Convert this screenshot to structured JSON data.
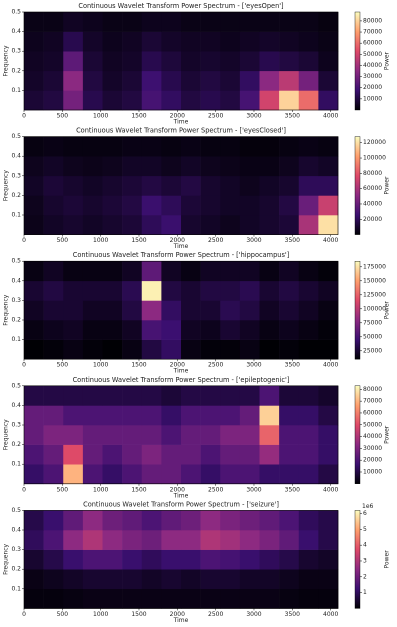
{
  "chart_data": [
    {
      "type": "heatmap",
      "title": "Continuous Wavelet Transform Power Spectrum - ['eyesOpen']",
      "x_label": "Time",
      "y_label": "Frequency",
      "colorbar_label": "Power",
      "xbins": [
        0,
        256,
        512,
        768,
        1024,
        1280,
        1536,
        1792,
        2048,
        2304,
        2560,
        2816,
        3072,
        3328,
        3584,
        3840,
        4096
      ],
      "ybins": [
        0,
        0.1,
        0.2,
        0.3,
        0.4,
        0.5
      ],
      "z": [
        [
          8000,
          10000,
          30000,
          12000,
          8000,
          10000,
          20000,
          15000,
          10000,
          12000,
          10000,
          20000,
          50000,
          80000,
          60000,
          15000
        ],
        [
          6000,
          8000,
          35000,
          10000,
          6000,
          8000,
          18000,
          12000,
          8000,
          10000,
          8000,
          15000,
          35000,
          45000,
          30000,
          8000
        ],
        [
          5000,
          6000,
          25000,
          8000,
          5000,
          6000,
          12000,
          9000,
          6000,
          7000,
          6000,
          8000,
          12000,
          10000,
          8000,
          4000
        ],
        [
          4000,
          5000,
          12000,
          6000,
          4000,
          5000,
          8000,
          6000,
          5000,
          5000,
          4000,
          5000,
          6000,
          5000,
          4000,
          3000
        ],
        [
          3000,
          3000,
          5000,
          4000,
          3000,
          3000,
          4000,
          4000,
          3000,
          3000,
          3000,
          3000,
          3000,
          3000,
          3000,
          2000
        ]
      ],
      "xlim": [
        0,
        4096
      ],
      "xticks": [
        0,
        500,
        1000,
        1500,
        2000,
        2500,
        3000,
        3500,
        4000
      ],
      "ylim": [
        0,
        0.5
      ],
      "yticks": [
        0.1,
        0.2,
        0.3,
        0.4,
        0.5
      ],
      "zlim": [
        0,
        88000
      ],
      "zticks": [
        10000,
        20000,
        30000,
        40000,
        50000,
        60000,
        70000,
        80000
      ],
      "colormap": [
        "#000004",
        "#3b0f70",
        "#8c2981",
        "#de4968",
        "#fe9f6d",
        "#fcfdbf"
      ]
    },
    {
      "type": "heatmap",
      "title": "Continuous Wavelet Transform Power Spectrum - ['eyesClosed']",
      "x_label": "Time",
      "y_label": "Frequency",
      "colorbar_label": "Power",
      "xbins": [
        0,
        256,
        512,
        768,
        1024,
        1280,
        1536,
        1792,
        2048,
        2304,
        2560,
        2816,
        3072,
        3328,
        3584,
        3840,
        4096
      ],
      "ybins": [
        0,
        0.1,
        0.2,
        0.3,
        0.4,
        0.5
      ],
      "z": [
        [
          5000,
          8000,
          10000,
          8000,
          10000,
          12000,
          20000,
          25000,
          10000,
          8000,
          6000,
          8000,
          10000,
          12000,
          60000,
          120000
        ],
        [
          6000,
          10000,
          12000,
          10000,
          12000,
          15000,
          25000,
          20000,
          12000,
          10000,
          8000,
          8000,
          10000,
          15000,
          40000,
          70000
        ],
        [
          8000,
          12000,
          10000,
          8000,
          10000,
          12000,
          15000,
          12000,
          15000,
          10000,
          8000,
          6000,
          8000,
          10000,
          20000,
          20000
        ],
        [
          6000,
          8000,
          6000,
          5000,
          6000,
          8000,
          8000,
          6000,
          8000,
          6000,
          5000,
          4000,
          4000,
          6000,
          10000,
          8000
        ],
        [
          3000,
          4000,
          3000,
          3000,
          3000,
          4000,
          4000,
          3000,
          4000,
          3000,
          3000,
          2000,
          2000,
          3000,
          4000,
          3000
        ]
      ],
      "xlim": [
        0,
        4096
      ],
      "xticks": [
        0,
        500,
        1000,
        1500,
        2000,
        2500,
        3000,
        3500,
        4000
      ],
      "ylim": [
        0,
        0.5
      ],
      "yticks": [
        0.1,
        0.2,
        0.3,
        0.4,
        0.5
      ],
      "zlim": [
        0,
        128000
      ],
      "zticks": [
        20000,
        40000,
        60000,
        80000,
        100000,
        120000
      ],
      "colormap": [
        "#000004",
        "#3b0f70",
        "#8c2981",
        "#de4968",
        "#fe9f6d",
        "#fcfdbf"
      ]
    },
    {
      "type": "heatmap",
      "title": "Continuous Wavelet Transform Power Spectrum - ['hippocampus']",
      "x_label": "Time",
      "y_label": "Frequency",
      "colorbar_label": "Power",
      "xbins": [
        0,
        256,
        512,
        768,
        1024,
        1280,
        1536,
        1792,
        2048,
        2304,
        2560,
        2816,
        3072,
        3328,
        3584,
        3840,
        4096
      ],
      "ybins": [
        0,
        0.1,
        0.2,
        0.3,
        0.4,
        0.5
      ],
      "z": [
        [
          10000,
          12000,
          15000,
          12000,
          10000,
          15000,
          30000,
          40000,
          15000,
          12000,
          12000,
          15000,
          10000,
          12000,
          10000,
          10000
        ],
        [
          15000,
          18000,
          20000,
          15000,
          15000,
          20000,
          50000,
          45000,
          20000,
          18000,
          25000,
          20000,
          15000,
          18000,
          15000,
          12000
        ],
        [
          20000,
          25000,
          25000,
          20000,
          20000,
          30000,
          80000,
          40000,
          25000,
          25000,
          35000,
          30000,
          20000,
          25000,
          20000,
          15000
        ],
        [
          25000,
          30000,
          25000,
          25000,
          25000,
          35000,
          180000,
          30000,
          25000,
          30000,
          30000,
          35000,
          25000,
          30000,
          25000,
          20000
        ],
        [
          15000,
          20000,
          15000,
          15000,
          15000,
          20000,
          60000,
          20000,
          15000,
          20000,
          20000,
          20000,
          15000,
          20000,
          15000,
          12000
        ]
      ],
      "xlim": [
        0,
        4096
      ],
      "xticks": [
        0,
        500,
        1000,
        1500,
        2000,
        2500,
        3000,
        3500,
        4000
      ],
      "ylim": [
        0,
        0.5
      ],
      "yticks": [
        0.1,
        0.2,
        0.3,
        0.4,
        0.5
      ],
      "zlim": [
        10000,
        185000
      ],
      "zticks": [
        25000,
        50000,
        75000,
        100000,
        125000,
        150000,
        175000
      ],
      "colormap": [
        "#000004",
        "#3b0f70",
        "#8c2981",
        "#de4968",
        "#fe9f6d",
        "#fcfdbf"
      ]
    },
    {
      "type": "heatmap",
      "title": "Continuous Wavelet Transform Power Spectrum - ['epileptogenic']",
      "x_label": "Time",
      "y_label": "Frequency",
      "colorbar_label": "Power",
      "xbins": [
        0,
        256,
        512,
        768,
        1024,
        1280,
        1536,
        1792,
        2048,
        2304,
        2560,
        2816,
        3072,
        3328,
        3584,
        3840,
        4096
      ],
      "ybins": [
        0,
        0.1,
        0.2,
        0.3,
        0.4,
        0.5
      ],
      "z": [
        [
          15000,
          20000,
          70000,
          20000,
          15000,
          20000,
          25000,
          25000,
          20000,
          15000,
          20000,
          20000,
          15000,
          15000,
          15000,
          10000
        ],
        [
          20000,
          25000,
          50000,
          25000,
          20000,
          25000,
          30000,
          25000,
          25000,
          20000,
          25000,
          25000,
          35000,
          20000,
          20000,
          15000
        ],
        [
          25000,
          30000,
          30000,
          25000,
          25000,
          25000,
          25000,
          20000,
          25000,
          25000,
          30000,
          30000,
          55000,
          20000,
          20000,
          15000
        ],
        [
          25000,
          25000,
          20000,
          20000,
          20000,
          20000,
          20000,
          15000,
          20000,
          20000,
          20000,
          25000,
          75000,
          15000,
          15000,
          10000
        ],
        [
          10000,
          10000,
          10000,
          10000,
          10000,
          10000,
          10000,
          8000,
          10000,
          10000,
          10000,
          10000,
          20000,
          8000,
          8000,
          6000
        ]
      ],
      "xlim": [
        0,
        4096
      ],
      "xticks": [
        0,
        500,
        1000,
        1500,
        2000,
        2500,
        3000,
        3500,
        4000
      ],
      "ylim": [
        0,
        0.5
      ],
      "yticks": [
        0.1,
        0.2,
        0.3,
        0.4,
        0.5
      ],
      "zlim": [
        0,
        83000
      ],
      "zticks": [
        10000,
        20000,
        30000,
        40000,
        50000,
        60000,
        70000,
        80000
      ],
      "colormap": [
        "#000004",
        "#3b0f70",
        "#8c2981",
        "#de4968",
        "#fe9f6d",
        "#fcfdbf"
      ]
    },
    {
      "type": "heatmap",
      "title": "Continuous Wavelet Transform Power Spectrum - ['seizure']",
      "x_label": "Time",
      "y_label": "Frequency",
      "colorbar_label": "Power",
      "colorbar_offset": "1e6",
      "xbins": [
        0,
        256,
        512,
        768,
        1024,
        1280,
        1536,
        1792,
        2048,
        2304,
        2560,
        2816,
        3072,
        3328,
        3584,
        3840,
        4096
      ],
      "ybins": [
        0,
        0.1,
        0.2,
        0.3,
        0.4,
        0.5
      ],
      "z": [
        [
          100000,
          100000,
          150000,
          200000,
          200000,
          200000,
          200000,
          200000,
          200000,
          200000,
          200000,
          200000,
          200000,
          150000,
          100000,
          100000
        ],
        [
          200000,
          300000,
          400000,
          500000,
          500000,
          500000,
          400000,
          500000,
          400000,
          500000,
          500000,
          400000,
          400000,
          300000,
          200000,
          200000
        ],
        [
          500000,
          800000,
          1200000,
          1500000,
          1500000,
          1200000,
          1000000,
          1200000,
          1200000,
          1500000,
          1400000,
          1200000,
          1000000,
          800000,
          500000,
          400000
        ],
        [
          1000000,
          1500000,
          2500000,
          3000000,
          2500000,
          2200000,
          2000000,
          2500000,
          2500000,
          3000000,
          2800000,
          2500000,
          2200000,
          1800000,
          1200000,
          800000
        ],
        [
          800000,
          1200000,
          1800000,
          2500000,
          2000000,
          1800000,
          1500000,
          1800000,
          2000000,
          2500000,
          2200000,
          2000000,
          1800000,
          1500000,
          1000000,
          800000
        ]
      ],
      "xlim": [
        0,
        4096
      ],
      "xticks": [
        0,
        500,
        1000,
        1500,
        2000,
        2500,
        3000,
        3500,
        4000
      ],
      "ylim": [
        0,
        0.5
      ],
      "yticks": [
        0.1,
        0.2,
        0.3,
        0.4,
        0.5
      ],
      "zlim": [
        0,
        6200000
      ],
      "zticks": [
        {
          "value": 1000000,
          "label": "1"
        },
        {
          "value": 2000000,
          "label": "2"
        },
        {
          "value": 3000000,
          "label": "3"
        },
        {
          "value": 4000000,
          "label": "4"
        },
        {
          "value": 5000000,
          "label": "5"
        },
        {
          "value": 6000000,
          "label": "6"
        }
      ],
      "colormap": [
        "#000004",
        "#3b0f70",
        "#8c2981",
        "#de4968",
        "#fe9f6d",
        "#fcfdbf"
      ]
    }
  ]
}
